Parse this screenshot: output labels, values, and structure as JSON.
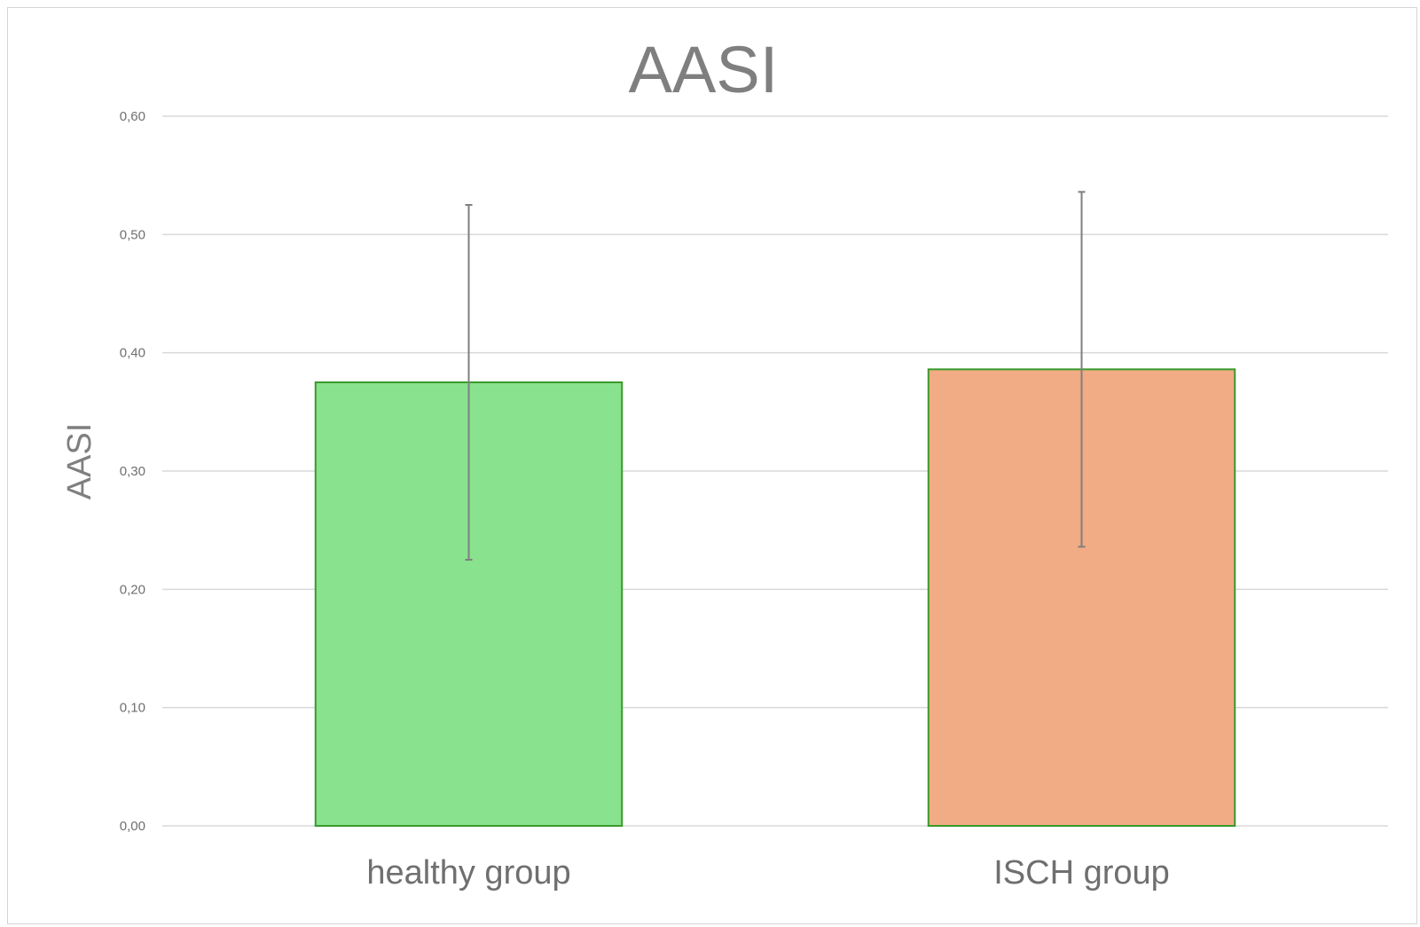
{
  "chart_data": {
    "type": "bar",
    "title": "AASI",
    "xlabel": "",
    "ylabel": "AASI",
    "categories": [
      "healthy group",
      "ISCH group"
    ],
    "values": [
      0.375,
      0.386
    ],
    "error": [
      0.15,
      0.15
    ],
    "ylim": [
      0,
      0.6
    ],
    "yticks": [
      0,
      0.1,
      0.2,
      0.3,
      0.4,
      0.5,
      0.6
    ],
    "ytick_labels": [
      "0,00",
      "0,10",
      "0,20",
      "0,30",
      "0,40",
      "0,50",
      "0,60"
    ],
    "colors": [
      "#88e28e",
      "#f1ab85"
    ],
    "bar_border_color": "#3a9a2c",
    "error_bar_color": "#7f7f7f",
    "grid": true,
    "legend": "none"
  }
}
